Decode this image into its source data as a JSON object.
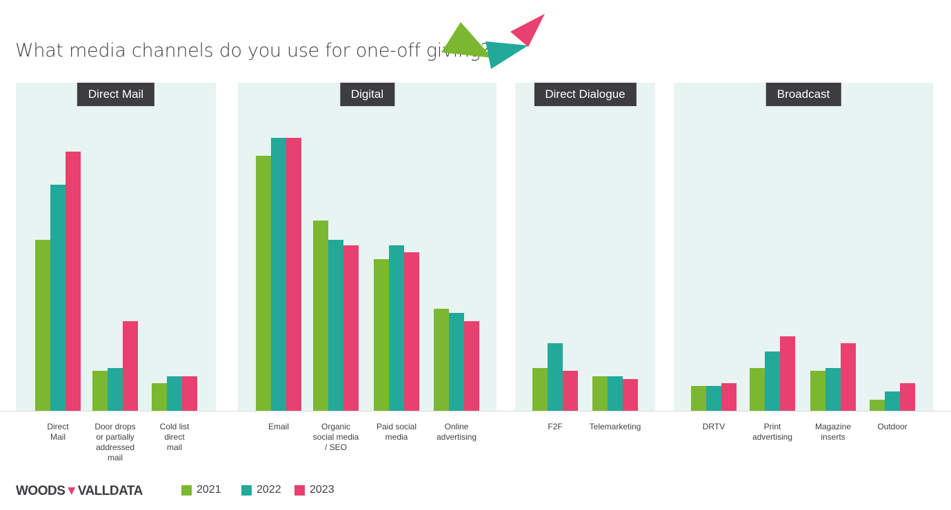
{
  "title": "What media channels do you use for one-off giving?",
  "logo": "WOODS VALLDATA",
  "colors": {
    "2021": "#7cb732",
    "2022": "#22a99a",
    "2023": "#e8416f",
    "panel": "#e8f4f1",
    "header": "#3c3c41"
  },
  "chart_data": {
    "type": "bar",
    "title": "What media channels do you use for one-off giving?",
    "xlabel": "",
    "ylabel": "",
    "ylim": [
      0,
      100
    ],
    "grid": false,
    "legend": "bottom",
    "note": "No value axis printed; values are relative estimates",
    "groups": [
      {
        "label": "Direct Mail",
        "categories": [
          "Direct\nMail",
          "Door drops\nor partially\naddressed\nmail",
          "Cold list\ndirect\nmail"
        ]
      },
      {
        "label": "Digital",
        "categories": [
          "Email",
          "Organic\nsocial media\n/ SEO",
          "Paid social\nmedia",
          "Online\nadvertising"
        ]
      },
      {
        "label": "Direct Dialogue",
        "categories": [
          "F2F",
          "Telemarketing"
        ]
      },
      {
        "label": "Broadcast",
        "categories": [
          "DRTV",
          "Print\nadvertising",
          "Magazine\ninserts",
          "Outdoor"
        ]
      }
    ],
    "categories": [
      "Direct\nMail",
      "Door drops\nor partially\naddressed\nmail",
      "Cold list\ndirect\nmail",
      "Email",
      "Organic\nsocial media\n/ SEO",
      "Paid social\nmedia",
      "Online\nadvertising",
      "F2F",
      "Telemarketing",
      "DRTV",
      "Print\nadvertising",
      "Magazine\ninserts",
      "Outdoor"
    ],
    "series": [
      {
        "name": "2021",
        "values": [
          62,
          14.5,
          10,
          92.5,
          69,
          55,
          37,
          15.5,
          12.5,
          9,
          15.5,
          14.5,
          4
        ]
      },
      {
        "name": "2022",
        "values": [
          82,
          15.5,
          12.5,
          99,
          62,
          60,
          35.5,
          24.5,
          12.5,
          9,
          21.5,
          15.5,
          7
        ]
      },
      {
        "name": "2023",
        "values": [
          94,
          32.5,
          12.5,
          99,
          60,
          57.5,
          32.5,
          14.5,
          11.5,
          10,
          27,
          24.5,
          10
        ]
      }
    ]
  }
}
